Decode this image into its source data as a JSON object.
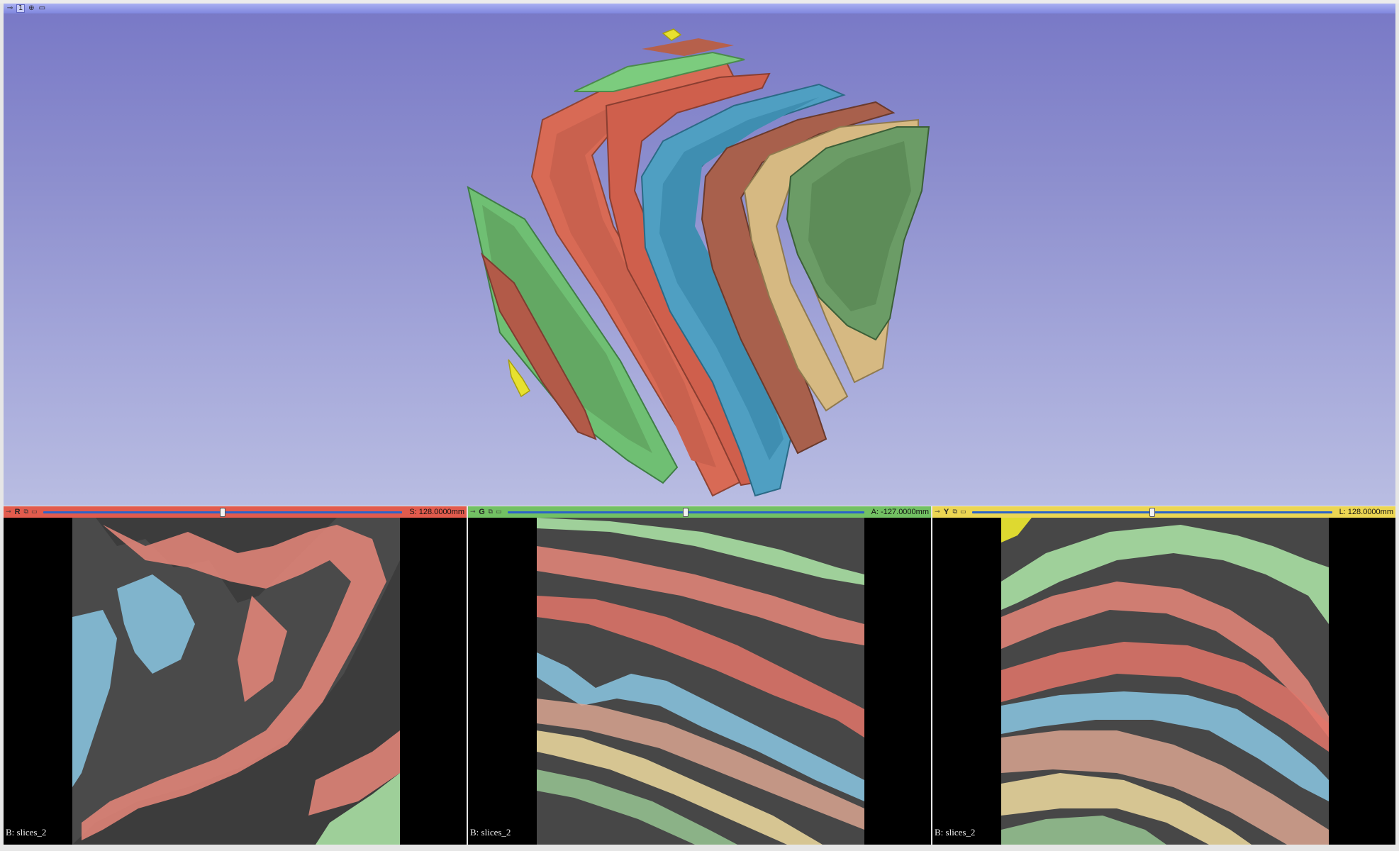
{
  "view3d": {
    "layout_number": "1",
    "pin_icon": "pin-icon",
    "center_icon": "crosshair-icon",
    "maximize_icon": "maximize-icon",
    "background_top": "#7878c6",
    "background_bottom": "#b9bde2"
  },
  "segment_colors": {
    "green": "#6fbf73",
    "red": "#d86a55",
    "blue": "#4f9fc2",
    "brown": "#a8604c",
    "tan": "#d6b982",
    "yellow": "#e7e12f"
  },
  "slice_views": [
    {
      "letter": "R",
      "color": "#e25b4d",
      "offset_text": "S: 128.0000mm",
      "slider_fraction": 0.5,
      "background_label": "B: slices_2"
    },
    {
      "letter": "G",
      "color": "#72c163",
      "offset_text": "A: -127.0000mm",
      "slider_fraction": 0.5,
      "background_label": "B: slices_2"
    },
    {
      "letter": "Y",
      "color": "#ecd652",
      "offset_text": "L: 128.0000mm",
      "slider_fraction": 0.5,
      "background_label": "B: slices_2"
    }
  ]
}
